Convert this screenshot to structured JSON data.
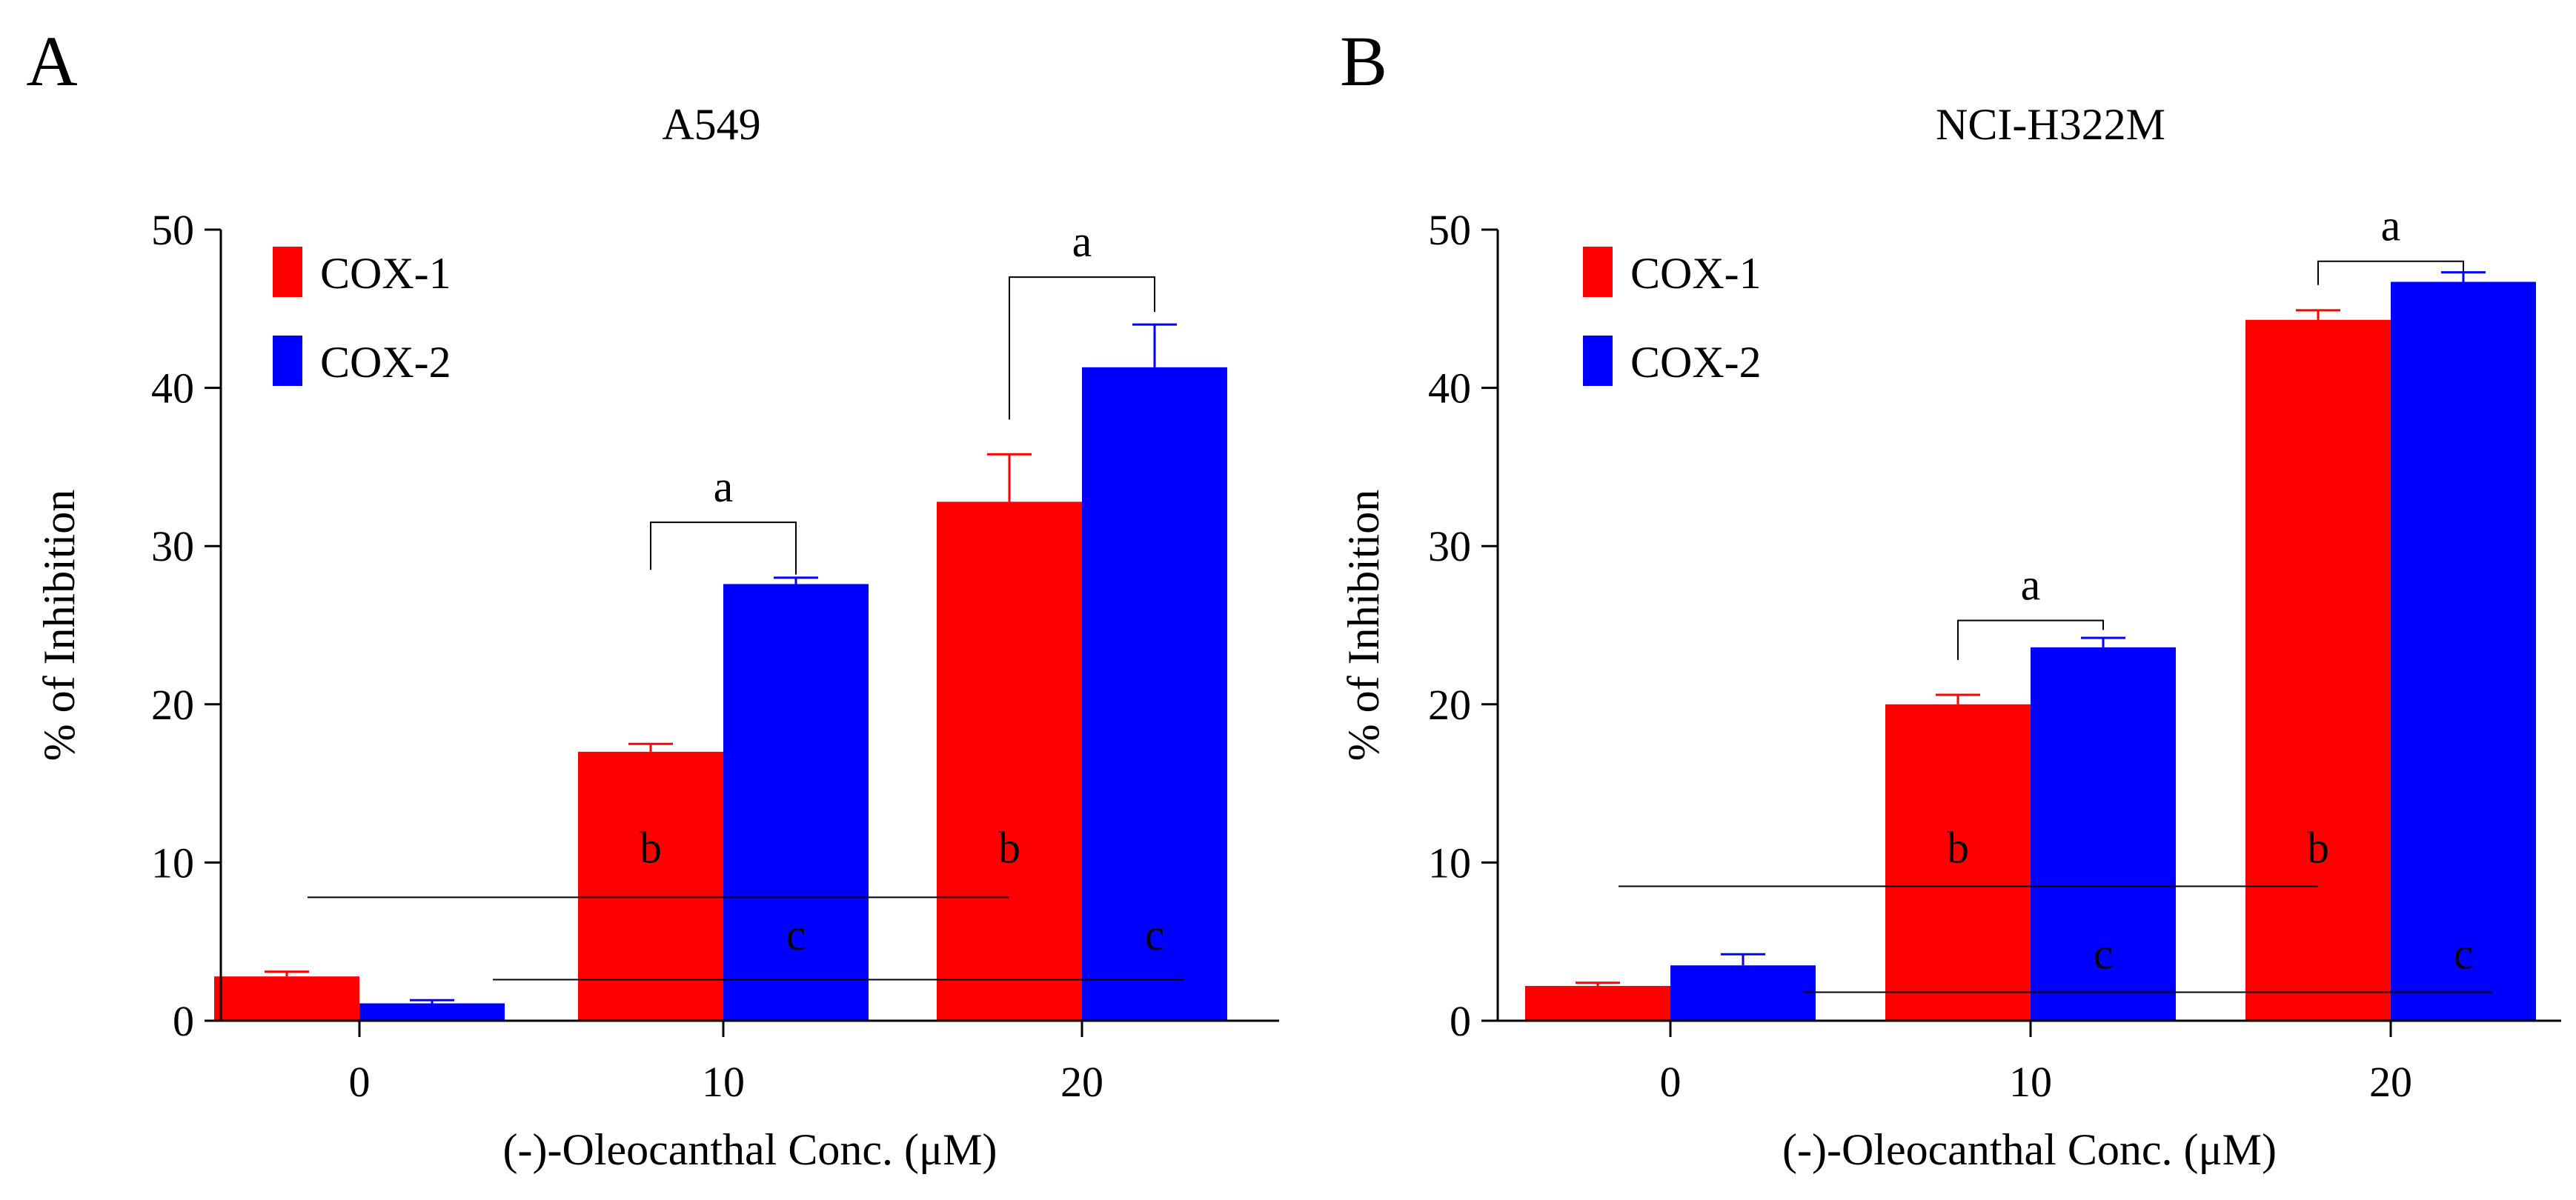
{
  "chart_data": [
    {
      "panel_label": "A",
      "type": "bar",
      "title": "A549",
      "xlabel": "(-)-Oleocanthal Conc. (μM)",
      "ylabel": "% of Inhibition",
      "ylim": [
        0,
        50
      ],
      "yticks": [
        "0",
        "10",
        "20",
        "30",
        "40",
        "50"
      ],
      "categories": [
        "0",
        "10",
        "20"
      ],
      "legend_position": "top-left",
      "series": [
        {
          "name": "COX-1",
          "color": "#ff0000",
          "values": [
            2.8,
            17.0,
            32.8
          ],
          "errors": [
            0.3,
            0.5,
            3.0
          ]
        },
        {
          "name": "COX-2",
          "color": "#0000ff",
          "values": [
            1.1,
            27.6,
            41.3
          ],
          "errors": [
            0.2,
            0.4,
            2.7
          ]
        }
      ],
      "brackets": [
        {
          "category": 1,
          "label": "a",
          "y": 31.5,
          "left_drop": 28.5,
          "right_drop": 28.2
        },
        {
          "category": 2,
          "label": "a",
          "y": 47.0,
          "left_drop": 38.0,
          "right_drop": 44.8
        }
      ],
      "significance_lines": [
        {
          "label": "b",
          "series": 0,
          "y": 7.8,
          "from_cat": 0,
          "to_cat": 2,
          "label_y": 10.0
        },
        {
          "label": "c",
          "series": 1,
          "y": 2.6,
          "from_cat": 0,
          "to_cat": 2,
          "label_y": 4.5
        }
      ]
    },
    {
      "panel_label": "B",
      "type": "bar",
      "title": "NCI-H322M",
      "xlabel": "(-)-Oleocanthal Conc. (μM)",
      "ylabel": "% of Inhibition",
      "ylim": [
        0,
        50
      ],
      "yticks": [
        "0",
        "10",
        "20",
        "30",
        "40",
        "50"
      ],
      "categories": [
        "0",
        "10",
        "20"
      ],
      "legend_position": "top-left",
      "series": [
        {
          "name": "COX-1",
          "color": "#ff0000",
          "values": [
            2.2,
            20.0,
            44.3
          ],
          "errors": [
            0.2,
            0.6,
            0.6
          ]
        },
        {
          "name": "COX-2",
          "color": "#0000ff",
          "values": [
            3.5,
            23.6,
            46.7
          ],
          "errors": [
            0.7,
            0.6,
            0.6
          ]
        }
      ],
      "brackets": [
        {
          "category": 1,
          "label": "a",
          "y": 25.3,
          "left_drop": 22.8,
          "right_drop": 24.7
        },
        {
          "category": 2,
          "label": "a",
          "y": 48.0,
          "left_drop": 46.5,
          "right_drop": 47.3
        }
      ],
      "significance_lines": [
        {
          "label": "b",
          "series": 0,
          "y": 8.5,
          "from_cat": 0,
          "to_cat": 2,
          "label_y": 10.0
        },
        {
          "label": "c",
          "series": 1,
          "y": 1.8,
          "from_cat": 0,
          "to_cat": 2,
          "label_y": 3.3
        }
      ]
    }
  ]
}
